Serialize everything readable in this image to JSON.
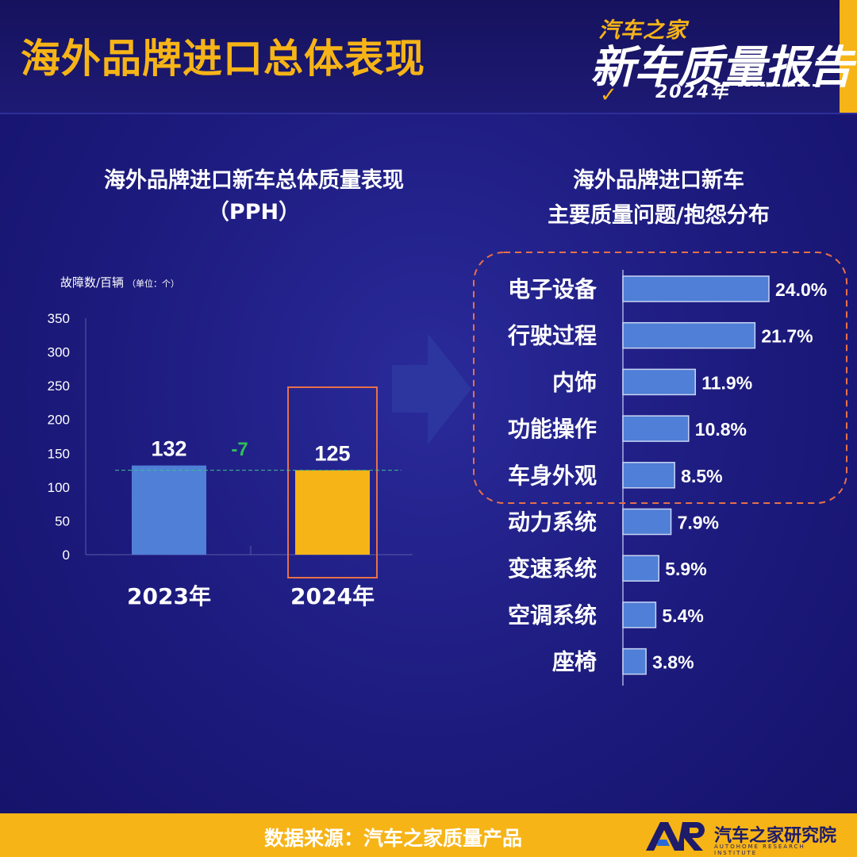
{
  "header": {
    "title": "海外品牌进口总体表现",
    "logo_line1": "汽车之家",
    "logo_line2": "新车质量报告",
    "logo_year": "2024年"
  },
  "left_chart_title": {
    "line1": "海外品牌进口新车总体质量表现",
    "line2": "（PPH）"
  },
  "right_chart_title": {
    "line1": "海外品牌进口新车",
    "line2": "主要质量问题/抱怨分布"
  },
  "footer": {
    "source": "数据来源：汽车之家质量产品",
    "brand": "汽车之家研究院",
    "brand_sub": "AUTOHOME RESEARCH INSTITUTE"
  },
  "colors": {
    "background": "#1c1a7c",
    "accent": "#f6b417",
    "bar_2023": "#4f7fd6",
    "bar_2024": "#f6b417",
    "highlight_border": "#e8704a",
    "delta": "#2fbf5a",
    "hbar": "#4f7fd6"
  },
  "chart_data": [
    {
      "type": "bar",
      "unit_label": "故障数/百辆",
      "unit_note": "（单位：个）",
      "categories": [
        "2023年",
        "2024年"
      ],
      "values": [
        132,
        125
      ],
      "data_labels": [
        "132",
        "125"
      ],
      "delta_label": "-7",
      "ylim": [
        0,
        350
      ],
      "yticks": [
        0,
        50,
        100,
        150,
        200,
        250,
        300,
        350
      ],
      "highlighted_category": "2024年"
    },
    {
      "type": "bar",
      "orientation": "horizontal",
      "categories": [
        "电子设备",
        "行驶过程",
        "内饰",
        "功能操作",
        "车身外观",
        "动力系统",
        "变速系统",
        "空调系统",
        "座椅"
      ],
      "values": [
        24.0,
        21.7,
        11.9,
        10.8,
        8.5,
        7.9,
        5.9,
        5.4,
        3.8
      ],
      "data_labels": [
        "24.0%",
        "21.7%",
        "11.9%",
        "10.8%",
        "8.5%",
        "7.9%",
        "5.9%",
        "5.4%",
        "3.8%"
      ],
      "highlighted_top_n": 5
    }
  ]
}
